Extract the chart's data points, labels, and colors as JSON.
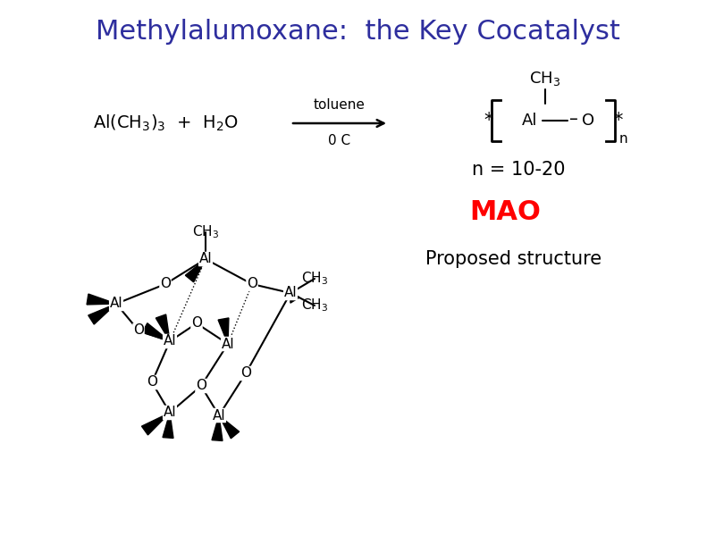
{
  "title": "Methylalumoxane:  the Key Cocatalyst",
  "title_color": "#2e2e9e",
  "title_fontsize": 22,
  "bg_color": "#ffffff",
  "n_label": "n = 10-20",
  "mao_label": "MAO",
  "mao_color": "#ff0000",
  "proposed_label": "Proposed structure"
}
